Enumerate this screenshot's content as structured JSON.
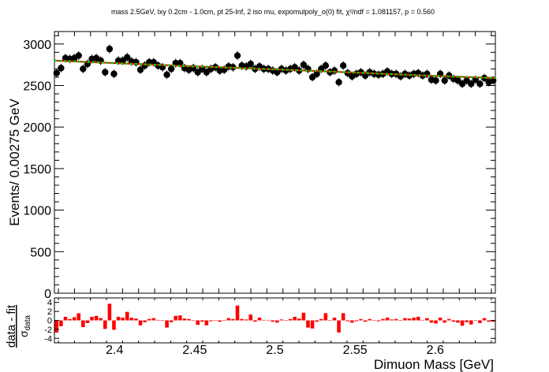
{
  "colors": {
    "data": "#000000",
    "fit": "#ff0000",
    "model": "#00cc00",
    "pull": "#ff0000",
    "axis": "#000000"
  },
  "chart_data": [
    {
      "type": "scatter",
      "title": "mass 2.5GeV, lxy 0.2cm - 1.0cm, pt 25-Inf, 2 iso mu, expomulpoly_o(0) fit, χ²/ndf = 1.081157, p = 0.560",
      "xlabel": "Dimuon Mass [GeV]",
      "ylabel": "Events/ 0.00275 GeV",
      "xlim": [
        2.3625,
        2.6375
      ],
      "ylim": [
        0,
        3150
      ],
      "xticks": [
        "2.4",
        "2.45",
        "2.5",
        "2.55",
        "2.6"
      ],
      "yticks": [
        "0",
        "500",
        "1000",
        "1500",
        "2000",
        "2500",
        "3000"
      ],
      "grid": false,
      "series": [
        {
          "x": [
            2.36388,
            2.36663,
            2.36938,
            2.37213,
            2.37488,
            2.37763,
            2.38038,
            2.38313,
            2.38588,
            2.38863,
            2.39138,
            2.39413,
            2.39688,
            2.39963,
            2.40238,
            2.40513,
            2.40788,
            2.41063,
            2.41338,
            2.41613,
            2.41888,
            2.42163,
            2.42438,
            2.42713,
            2.42988,
            2.43263,
            2.43538,
            2.43813,
            2.44088,
            2.44363,
            2.44638,
            2.44913,
            2.45188,
            2.45463,
            2.45738,
            2.46013,
            2.46288,
            2.46563,
            2.46838,
            2.47113,
            2.47388,
            2.47663,
            2.47938,
            2.48213,
            2.48488,
            2.48763,
            2.49038,
            2.49313,
            2.49588,
            2.49863,
            2.50138,
            2.50413,
            2.50688,
            2.50963,
            2.51238,
            2.51513,
            2.51788,
            2.52063,
            2.52338,
            2.52613,
            2.52888,
            2.53163,
            2.53438,
            2.53713,
            2.53988,
            2.54263,
            2.54538,
            2.54813,
            2.55088,
            2.55363,
            2.55638,
            2.55913,
            2.56188,
            2.56463,
            2.56738,
            2.57013,
            2.57288,
            2.57563,
            2.57838,
            2.58113,
            2.58388,
            2.58663,
            2.58938,
            2.59213,
            2.59488,
            2.59763,
            2.60038,
            2.60313,
            2.60588,
            2.60863,
            2.61138,
            2.61413,
            2.61688,
            2.61963,
            2.62238,
            2.62513,
            2.62788,
            2.63063,
            2.63338,
            2.63613
          ],
          "values": [
            2650,
            2710,
            2830,
            2820,
            2830,
            2860,
            2700,
            2760,
            2820,
            2830,
            2800,
            2660,
            2940,
            2640,
            2800,
            2800,
            2840,
            2790,
            2780,
            2690,
            2740,
            2780,
            2780,
            2740,
            2720,
            2630,
            2700,
            2770,
            2770,
            2710,
            2690,
            2710,
            2660,
            2700,
            2660,
            2700,
            2720,
            2680,
            2690,
            2730,
            2720,
            2860,
            2740,
            2730,
            2760,
            2700,
            2730,
            2700,
            2700,
            2680,
            2660,
            2700,
            2680,
            2700,
            2720,
            2680,
            2750,
            2700,
            2600,
            2640,
            2700,
            2740,
            2660,
            2680,
            2540,
            2740,
            2650,
            2610,
            2640,
            2660,
            2620,
            2660,
            2640,
            2630,
            2640,
            2670,
            2640,
            2640,
            2610,
            2640,
            2620,
            2640,
            2650,
            2620,
            2640,
            2570,
            2560,
            2640,
            2560,
            2620,
            2580,
            2560,
            2520,
            2560,
            2520,
            2570,
            2520,
            2590,
            2540,
            2560
          ]
        },
        {
          "x": [
            2.3625,
            2.4,
            2.45,
            2.5,
            2.55,
            2.6,
            2.6375
          ],
          "values": [
            2800,
            2770,
            2730,
            2695,
            2655,
            2615,
            2590
          ]
        }
      ]
    },
    {
      "type": "bar",
      "ylabel": "data - fit σdata",
      "ylim": [
        -5,
        5
      ],
      "yticks": [
        "-4",
        "-2",
        "0",
        "2",
        "4"
      ],
      "values": [
        -2.7,
        -1.3,
        0.8,
        0.3,
        0.7,
        1.6,
        -1.5,
        -0.6,
        0.8,
        1.0,
        0.5,
        -1.9,
        3.7,
        -2.1,
        0.8,
        0.6,
        1.9,
        0.6,
        0.4,
        -1.1,
        -0.4,
        0.3,
        0.5,
        0.1,
        -0.1,
        -1.6,
        -0.4,
        1.0,
        1.1,
        0.4,
        0.3,
        -0.1,
        -1.0,
        -0.3,
        -1.1,
        -0.2,
        0.0,
        -0.3,
        -0.1,
        0.5,
        0.3,
        3.3,
        0.3,
        0.2,
        1.3,
        -0.3,
        0.6,
        0.1,
        0.1,
        -0.3,
        -0.5,
        0.2,
        -0.1,
        0.3,
        0.8,
        0.4,
        1.7,
        -1.6,
        -1.8,
        -0.3,
        0.3,
        1.6,
        -0.1,
        0.6,
        -2.7,
        1.6,
        -0.2,
        -0.5,
        -0.2,
        0.3,
        -0.3,
        0.3,
        0.0,
        -0.2,
        0.3,
        0.6,
        0.2,
        0.3,
        -0.1,
        0.5,
        0.4,
        0.6,
        0.8,
        0.1,
        0.5,
        -0.5,
        -0.7,
        0.6,
        -0.5,
        0.3,
        -0.3,
        -0.5,
        -1.2,
        -0.4,
        -0.9,
        -0.1,
        -0.6,
        0.5,
        -0.3,
        -0.3
      ]
    }
  ]
}
